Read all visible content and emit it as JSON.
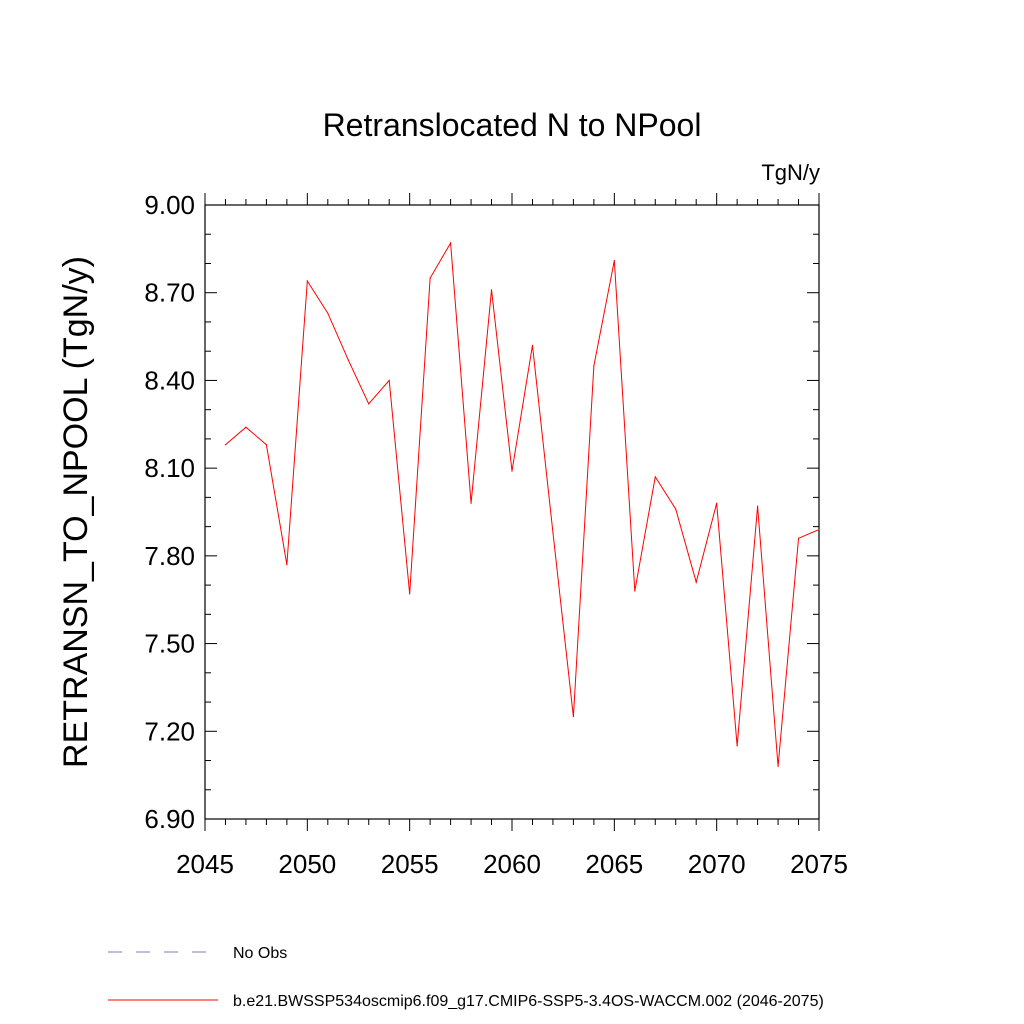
{
  "chart_data": {
    "type": "line",
    "title": "Retranslocated N to NPool",
    "units_label": "TgN/y",
    "ylabel": "RETRANSN_TO_NPOOL  (TgN/y)",
    "xlabel": "",
    "xlim": [
      2045,
      2075
    ],
    "ylim": [
      6.9,
      9.0
    ],
    "x_ticks": [
      2045,
      2050,
      2055,
      2060,
      2065,
      2070,
      2075
    ],
    "x_tick_labels": [
      "2045",
      "2050",
      "2055",
      "2060",
      "2065",
      "2070",
      "2075"
    ],
    "y_ticks": [
      6.9,
      7.2,
      7.5,
      7.8,
      8.1,
      8.4,
      8.7,
      9.0
    ],
    "y_tick_labels": [
      "6.90",
      "7.20",
      "7.50",
      "7.80",
      "8.10",
      "8.40",
      "8.70",
      "9.00"
    ],
    "grid": false,
    "series": [
      {
        "name": "b.e21.BWSSP534oscmip6.f09_g17.CMIP6-SSP5-3.4OS-WACCM.002 (2046-2075)",
        "color": "#ff0000",
        "x": [
          2046,
          2047,
          2048,
          2049,
          2050,
          2051,
          2052,
          2053,
          2054,
          2055,
          2056,
          2057,
          2058,
          2059,
          2060,
          2061,
          2062,
          2063,
          2064,
          2065,
          2066,
          2067,
          2068,
          2069,
          2070,
          2071,
          2072,
          2073,
          2074,
          2075
        ],
        "values": [
          8.18,
          8.24,
          8.18,
          7.77,
          8.74,
          8.63,
          8.47,
          8.32,
          8.4,
          7.67,
          8.75,
          8.87,
          7.98,
          8.71,
          8.09,
          8.52,
          7.88,
          7.25,
          8.45,
          8.81,
          7.68,
          8.07,
          7.96,
          7.71,
          7.98,
          7.15,
          7.97,
          7.08,
          7.86,
          7.89
        ]
      }
    ],
    "legend": [
      {
        "label": "No Obs",
        "color": "#7b7bbf",
        "style": "dashed"
      },
      {
        "label": "b.e21.BWSSP534oscmip6.f09_g17.CMIP6-SSP5-3.4OS-WACCM.002 (2046-2075)",
        "color": "#ff0000",
        "style": "solid"
      }
    ]
  }
}
